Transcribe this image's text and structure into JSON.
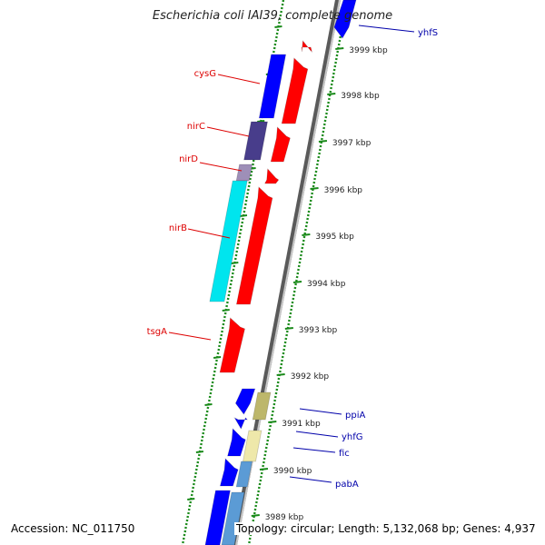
{
  "title": "Escherichia coli IAI39, complete genome",
  "footer": {
    "accession": "Accession: NC_011750",
    "topology": "Topology: circular; Length: 5,132,068 bp; Genes: 4,937"
  },
  "colors": {
    "forward_strand": "#0000ff",
    "reverse_strand": "#ff0000",
    "backbone": "#8a8a8a",
    "tick": "#1a8a1a",
    "label_forward": "#0000aa",
    "label_reverse": "#dd0000",
    "nirC_fill": "#483d8b",
    "nirD_fill": "#9e8fb8",
    "nirB_fill": "#00e5ee",
    "ppiA_fill": "#bdb76b",
    "fic_fill": "#eee8aa",
    "pabA_fill": "#5b9bd5"
  },
  "scale": {
    "labels": [
      "3999 kbp",
      "3998 kbp",
      "3997 kbp",
      "3996 kbp",
      "3995 kbp",
      "3994 kbp",
      "3993 kbp",
      "3992 kbp",
      "3991 kbp",
      "3990 kbp",
      "3989 kbp"
    ]
  },
  "gene_labels": [
    {
      "text": "yhfS",
      "strand": "forward"
    },
    {
      "text": "cysG",
      "strand": "reverse"
    },
    {
      "text": "nirC",
      "strand": "reverse"
    },
    {
      "text": "nirD",
      "strand": "reverse"
    },
    {
      "text": "nirB",
      "strand": "reverse"
    },
    {
      "text": "tsgA",
      "strand": "reverse"
    },
    {
      "text": "ppiA",
      "strand": "forward"
    },
    {
      "text": "yhfG",
      "strand": "forward"
    },
    {
      "text": "fic",
      "strand": "forward"
    },
    {
      "text": "pabA",
      "strand": "forward"
    }
  ]
}
